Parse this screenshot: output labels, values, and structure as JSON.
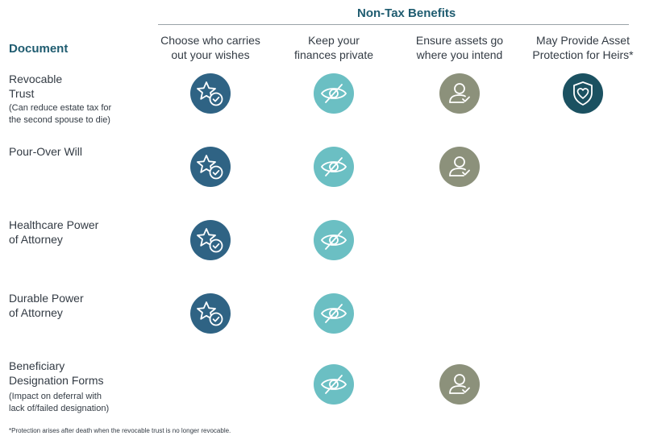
{
  "header": {
    "group_title": "Non-Tax Benefits",
    "document_label": "Document"
  },
  "columns": [
    {
      "line1": "Choose who carries",
      "line2": "out your wishes",
      "icon": "star-check-icon",
      "color": "#2f6384"
    },
    {
      "line1": "Keep your",
      "line2": "finances private",
      "icon": "eye-slash-icon",
      "color": "#6bbfc3"
    },
    {
      "line1": "Ensure assets go",
      "line2": "where you intend",
      "icon": "person-check-icon",
      "color": "#8c917b"
    },
    {
      "line1": "May Provide Asset",
      "line2": "Protection for Heirs*",
      "icon": "shield-heart-icon",
      "color": "#1b5161"
    }
  ],
  "rows": [
    {
      "title1": "Revocable",
      "title2": "Trust",
      "note1": "(Can reduce estate tax for",
      "note2": "the second spouse to die)",
      "benefits": [
        true,
        true,
        true,
        true
      ]
    },
    {
      "title1": "Pour-Over Will",
      "title2": "",
      "note1": "",
      "note2": "",
      "benefits": [
        true,
        true,
        true,
        false
      ]
    },
    {
      "title1": "Healthcare Power",
      "title2": "of Attorney",
      "note1": "",
      "note2": "",
      "benefits": [
        true,
        true,
        false,
        false
      ]
    },
    {
      "title1": "Durable Power",
      "title2": "of Attorney",
      "note1": "",
      "note2": "",
      "benefits": [
        true,
        true,
        false,
        false
      ]
    },
    {
      "title1": "Beneficiary",
      "title2": "Designation Forms",
      "note1": "(Impact on deferral with",
      "note2": "lack of/failed designation)",
      "benefits": [
        false,
        true,
        true,
        false
      ]
    }
  ],
  "footnote": "*Protection arises after death when the revocable trust is no longer revocable."
}
